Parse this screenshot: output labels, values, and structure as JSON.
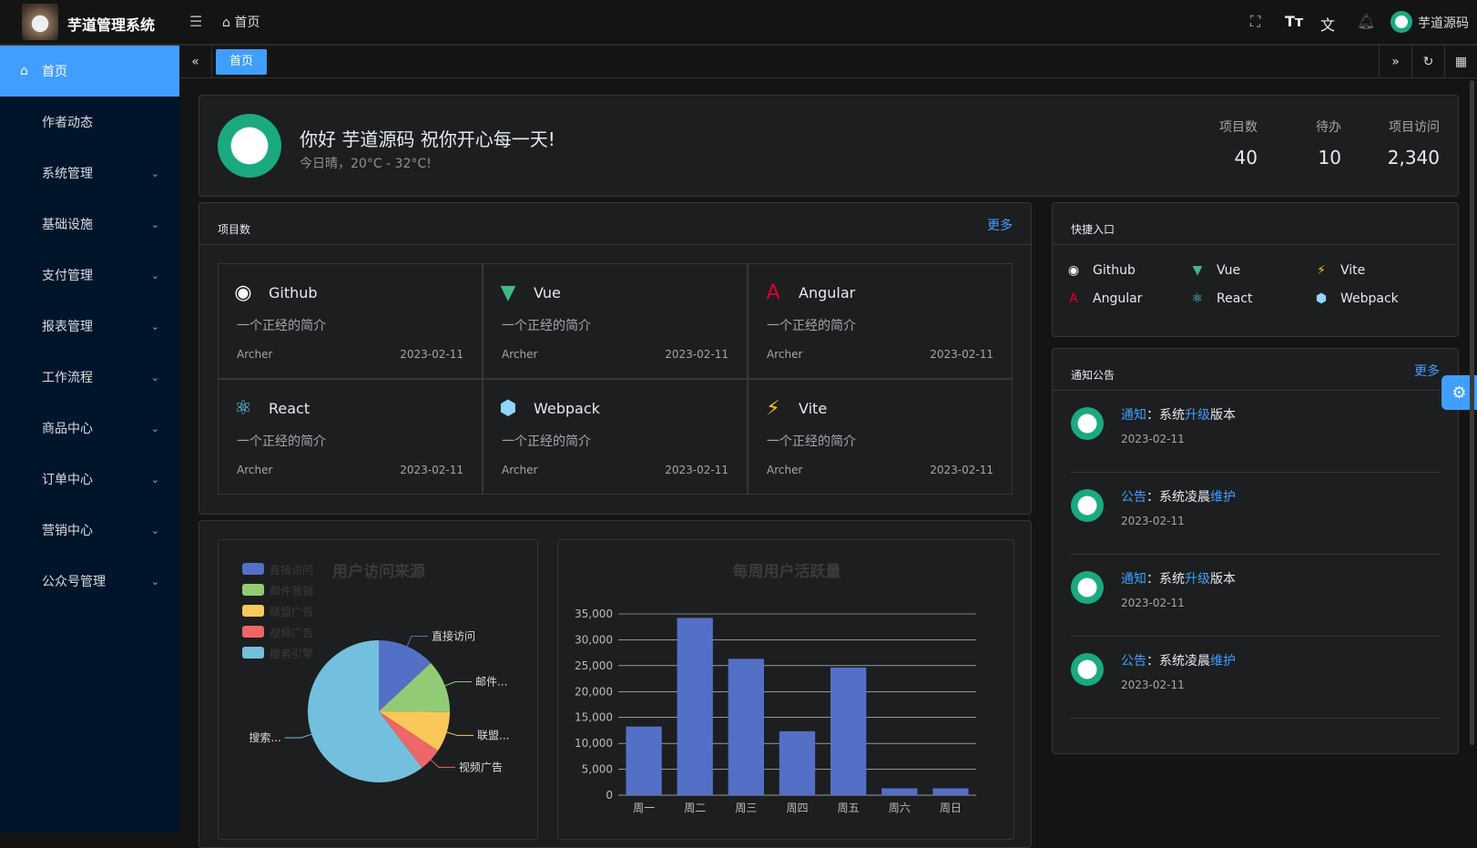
{
  "header": {
    "title": "芋道管理系统",
    "breadcrumb": "首页",
    "user": "芋道源码"
  },
  "sidebar": {
    "items": [
      {
        "label": "首页"
      },
      {
        "label": "作者动态"
      },
      {
        "label": "系统管理"
      },
      {
        "label": "基础设施"
      },
      {
        "label": "支付管理"
      },
      {
        "label": "报表管理"
      },
      {
        "label": "工作流程"
      },
      {
        "label": "商品中心"
      },
      {
        "label": "订单中心"
      },
      {
        "label": "营销中心"
      },
      {
        "label": "公众号管理"
      }
    ]
  },
  "tabs": [
    {
      "label": "首页"
    }
  ],
  "welcome": {
    "greeting": "你好 芋道源码 祝你开心每一天!",
    "weather": "今日晴，20°C - 32°C!",
    "stats": [
      {
        "label": "项目数",
        "value": "40"
      },
      {
        "label": "待办",
        "value": "10"
      },
      {
        "label": "项目访问",
        "value": "2,340"
      }
    ]
  },
  "projects": {
    "title": "项目数",
    "more": "更多",
    "items": [
      {
        "name": "Github",
        "desc": "一个正经的简介",
        "author": "Archer",
        "date": "2023-02-11",
        "icon": "github-icon",
        "color": "#ffffff"
      },
      {
        "name": "Vue",
        "desc": "一个正经的简介",
        "author": "Archer",
        "date": "2023-02-11",
        "icon": "vue-icon",
        "color": "#42b883"
      },
      {
        "name": "Angular",
        "desc": "一个正经的简介",
        "author": "Archer",
        "date": "2023-02-11",
        "icon": "angular-icon",
        "color": "#dd0031"
      },
      {
        "name": "React",
        "desc": "一个正经的简介",
        "author": "Archer",
        "date": "2023-02-11",
        "icon": "react-icon",
        "color": "#61dafb"
      },
      {
        "name": "Webpack",
        "desc": "一个正经的简介",
        "author": "Archer",
        "date": "2023-02-11",
        "icon": "webpack-icon",
        "color": "#8ed6fb"
      },
      {
        "name": "Vite",
        "desc": "一个正经的简介",
        "author": "Archer",
        "date": "2023-02-11",
        "icon": "vite-icon",
        "color": "#ffc517"
      }
    ]
  },
  "quick": {
    "title": "快捷入口",
    "items": [
      {
        "name": "Github"
      },
      {
        "name": "Vue"
      },
      {
        "name": "Vite"
      },
      {
        "name": "Angular"
      },
      {
        "name": "React"
      },
      {
        "name": "Webpack"
      }
    ]
  },
  "notices": {
    "title": "通知公告",
    "more": "更多",
    "items": [
      {
        "type": "通知",
        "sep": "：",
        "pre": "系统",
        "hl": "升级",
        "post": "版本",
        "date": "2023-02-11"
      },
      {
        "type": "公告",
        "sep": "：",
        "pre": "系统凌晨",
        "hl": "维护",
        "post": "",
        "date": "2023-02-11"
      },
      {
        "type": "通知",
        "sep": "：",
        "pre": "系统",
        "hl": "升级",
        "post": "版本",
        "date": "2023-02-11"
      },
      {
        "type": "公告",
        "sep": "：",
        "pre": "系统凌晨",
        "hl": "维护",
        "post": "",
        "date": "2023-02-11"
      }
    ]
  },
  "chart_data": [
    {
      "type": "pie",
      "title": "用户访问来源",
      "legend": "top-left",
      "categories": [
        "直接访问",
        "邮件营销",
        "联盟广告",
        "视频广告",
        "搜索引擎"
      ],
      "slice_labels": [
        "直接访问",
        "邮件...",
        "联盟...",
        "视频广告",
        "搜索..."
      ],
      "values": [
        335,
        310,
        234,
        135,
        1548
      ],
      "colors": [
        "#5470c6",
        "#91cc75",
        "#fac858",
        "#ee6666",
        "#73c0de"
      ]
    },
    {
      "type": "bar",
      "title": "每周用户活跃量",
      "categories": [
        "周一",
        "周二",
        "周三",
        "周四",
        "周五",
        "周六",
        "周日"
      ],
      "values": [
        13253,
        34235,
        26321,
        12340,
        24643,
        1322,
        1324
      ],
      "ylim": [
        0,
        35000
      ],
      "yticks": [
        "0",
        "5,000",
        "10,000",
        "15,000",
        "20,000",
        "25,000",
        "30,000",
        "35,000"
      ],
      "grid": true,
      "color": "#5470c6"
    }
  ]
}
